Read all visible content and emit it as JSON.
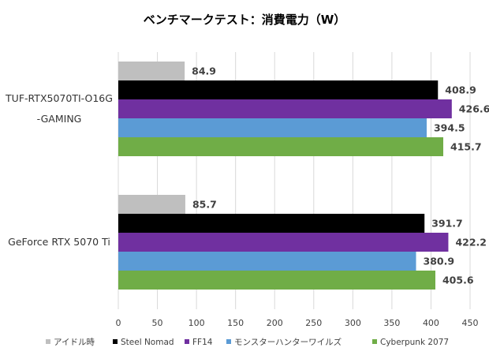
{
  "chart_data": {
    "type": "bar",
    "orientation": "horizontal",
    "title": "ベンチマークテスト：消費電力（W）",
    "xlabel": "",
    "ylabel": "",
    "xlim": [
      0,
      450
    ],
    "xticks": [
      0,
      50,
      100,
      150,
      200,
      250,
      300,
      350,
      400,
      450
    ],
    "grid": true,
    "legend_position": "bottom",
    "categories": [
      {
        "lines": [
          "TUF-RTX5070TI-O16G",
          "-GAMING"
        ]
      },
      {
        "lines": [
          "GeForce RTX 5070 Ti"
        ]
      }
    ],
    "series": [
      {
        "name": "アイドル時",
        "color": "#bfbfbf",
        "values": [
          84.9,
          85.7
        ],
        "labels": [
          "84.9",
          "85.7"
        ]
      },
      {
        "name": "Steel Nomad",
        "color": "#000000",
        "values": [
          408.9,
          391.7
        ],
        "labels": [
          "408.9",
          "391.7"
        ]
      },
      {
        "name": "FF14",
        "color": "#7030a0",
        "values": [
          426.6,
          422.2
        ],
        "labels": [
          "426.6",
          "422.2"
        ]
      },
      {
        "name": "モンスターハンターワイルズ",
        "color": "#5b9bd5",
        "values": [
          394.5,
          380.9
        ],
        "labels": [
          "394.5",
          "380.9"
        ]
      },
      {
        "name": "Cyberpunk 2077",
        "color": "#70ad47",
        "values": [
          415.7,
          405.6
        ],
        "labels": [
          "415.7",
          "405.6"
        ]
      }
    ]
  }
}
